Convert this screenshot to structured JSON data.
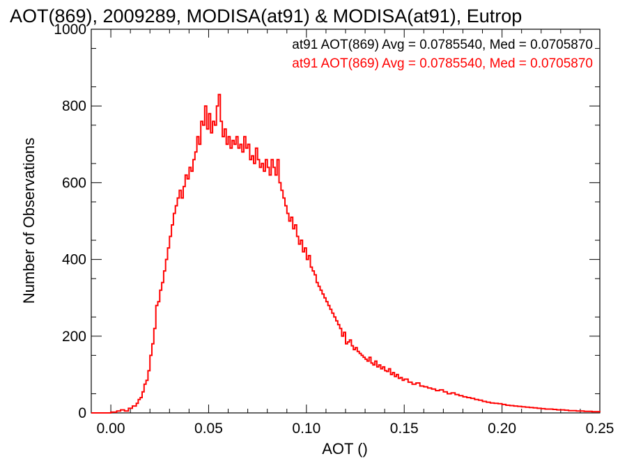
{
  "chart_data": {
    "type": "histogram-step",
    "title": "AOT(869), 2009289, MODISA(at91) & MODISA(at91), Eutrop",
    "xlabel": "AOT ()",
    "ylabel": "Number of Observations",
    "xlim": [
      -0.01,
      0.25
    ],
    "ylim": [
      0,
      1000
    ],
    "x_ticks": [
      0.0,
      0.05,
      0.1,
      0.15,
      0.2,
      0.25
    ],
    "x_tick_labels": [
      "0.00",
      "0.05",
      "0.10",
      "0.15",
      "0.20",
      "0.25"
    ],
    "y_ticks": [
      0,
      200,
      400,
      600,
      800,
      1000
    ],
    "y_tick_labels": [
      "0",
      "200",
      "400",
      "600",
      "800",
      "1000"
    ],
    "annotations": [
      {
        "text": "at91 AOT(869) Avg = 0.0785540, Med = 0.0705870",
        "color": "#000000"
      },
      {
        "text": "at91 AOT(869) Avg = 0.0785540, Med = 0.0705870",
        "color": "#ff0000"
      }
    ],
    "series": [
      {
        "color": "#ff0000",
        "points": [
          [
            -0.01,
            0
          ],
          [
            -0.005,
            0
          ],
          [
            0.0,
            2
          ],
          [
            0.003,
            5
          ],
          [
            0.005,
            8
          ],
          [
            0.007,
            5
          ],
          [
            0.009,
            12
          ],
          [
            0.011,
            18
          ],
          [
            0.013,
            25
          ],
          [
            0.014,
            35
          ],
          [
            0.015,
            40
          ],
          [
            0.016,
            55
          ],
          [
            0.017,
            75
          ],
          [
            0.018,
            85
          ],
          [
            0.019,
            110
          ],
          [
            0.02,
            150
          ],
          [
            0.021,
            180
          ],
          [
            0.022,
            220
          ],
          [
            0.023,
            280
          ],
          [
            0.024,
            290
          ],
          [
            0.025,
            320
          ],
          [
            0.026,
            340
          ],
          [
            0.027,
            370
          ],
          [
            0.028,
            400
          ],
          [
            0.029,
            430
          ],
          [
            0.03,
            460
          ],
          [
            0.031,
            490
          ],
          [
            0.032,
            520
          ],
          [
            0.033,
            540
          ],
          [
            0.034,
            560
          ],
          [
            0.035,
            580
          ],
          [
            0.036,
            560
          ],
          [
            0.037,
            590
          ],
          [
            0.038,
            620
          ],
          [
            0.039,
            610
          ],
          [
            0.04,
            640
          ],
          [
            0.041,
            630
          ],
          [
            0.042,
            660
          ],
          [
            0.043,
            680
          ],
          [
            0.044,
            720
          ],
          [
            0.045,
            700
          ],
          [
            0.046,
            760
          ],
          [
            0.047,
            750
          ],
          [
            0.048,
            800
          ],
          [
            0.049,
            740
          ],
          [
            0.05,
            780
          ],
          [
            0.051,
            730
          ],
          [
            0.052,
            760
          ],
          [
            0.053,
            750
          ],
          [
            0.054,
            800
          ],
          [
            0.055,
            830
          ],
          [
            0.056,
            760
          ],
          [
            0.057,
            720
          ],
          [
            0.058,
            740
          ],
          [
            0.059,
            700
          ],
          [
            0.06,
            720
          ],
          [
            0.061,
            690
          ],
          [
            0.062,
            710
          ],
          [
            0.063,
            700
          ],
          [
            0.064,
            720
          ],
          [
            0.065,
            690
          ],
          [
            0.066,
            700
          ],
          [
            0.067,
            680
          ],
          [
            0.068,
            720
          ],
          [
            0.069,
            690
          ],
          [
            0.07,
            700
          ],
          [
            0.071,
            660
          ],
          [
            0.072,
            670
          ],
          [
            0.073,
            650
          ],
          [
            0.074,
            690
          ],
          [
            0.075,
            660
          ],
          [
            0.076,
            640
          ],
          [
            0.077,
            650
          ],
          [
            0.078,
            630
          ],
          [
            0.079,
            660
          ],
          [
            0.08,
            640
          ],
          [
            0.081,
            620
          ],
          [
            0.082,
            660
          ],
          [
            0.083,
            640
          ],
          [
            0.084,
            620
          ],
          [
            0.085,
            660
          ],
          [
            0.086,
            600
          ],
          [
            0.087,
            580
          ],
          [
            0.088,
            560
          ],
          [
            0.089,
            540
          ],
          [
            0.09,
            520
          ],
          [
            0.091,
            500
          ],
          [
            0.092,
            510
          ],
          [
            0.093,
            480
          ],
          [
            0.094,
            490
          ],
          [
            0.095,
            460
          ],
          [
            0.096,
            440
          ],
          [
            0.097,
            450
          ],
          [
            0.098,
            420
          ],
          [
            0.099,
            430
          ],
          [
            0.1,
            400
          ],
          [
            0.101,
            410
          ],
          [
            0.102,
            380
          ],
          [
            0.103,
            370
          ],
          [
            0.104,
            360
          ],
          [
            0.105,
            340
          ],
          [
            0.106,
            330
          ],
          [
            0.107,
            320
          ],
          [
            0.108,
            310
          ],
          [
            0.109,
            300
          ],
          [
            0.11,
            290
          ],
          [
            0.111,
            280
          ],
          [
            0.112,
            270
          ],
          [
            0.113,
            260
          ],
          [
            0.114,
            250
          ],
          [
            0.115,
            240
          ],
          [
            0.116,
            230
          ],
          [
            0.117,
            220
          ],
          [
            0.118,
            200
          ],
          [
            0.119,
            210
          ],
          [
            0.12,
            180
          ],
          [
            0.121,
            185
          ],
          [
            0.122,
            190
          ],
          [
            0.123,
            175
          ],
          [
            0.124,
            165
          ],
          [
            0.125,
            170
          ],
          [
            0.126,
            160
          ],
          [
            0.127,
            155
          ],
          [
            0.128,
            150
          ],
          [
            0.129,
            145
          ],
          [
            0.13,
            140
          ],
          [
            0.131,
            135
          ],
          [
            0.132,
            145
          ],
          [
            0.133,
            130
          ],
          [
            0.134,
            125
          ],
          [
            0.135,
            135
          ],
          [
            0.136,
            120
          ],
          [
            0.137,
            125
          ],
          [
            0.138,
            115
          ],
          [
            0.139,
            120
          ],
          [
            0.14,
            110
          ],
          [
            0.141,
            108
          ],
          [
            0.142,
            115
          ],
          [
            0.143,
            100
          ],
          [
            0.144,
            105
          ],
          [
            0.145,
            95
          ],
          [
            0.146,
            100
          ],
          [
            0.147,
            90
          ],
          [
            0.148,
            92
          ],
          [
            0.149,
            85
          ],
          [
            0.15,
            88
          ],
          [
            0.152,
            80
          ],
          [
            0.154,
            75
          ],
          [
            0.156,
            78
          ],
          [
            0.158,
            70
          ],
          [
            0.16,
            68
          ],
          [
            0.162,
            65
          ],
          [
            0.164,
            62
          ],
          [
            0.166,
            58
          ],
          [
            0.168,
            60
          ],
          [
            0.17,
            55
          ],
          [
            0.172,
            50
          ],
          [
            0.174,
            52
          ],
          [
            0.176,
            48
          ],
          [
            0.178,
            45
          ],
          [
            0.18,
            42
          ],
          [
            0.182,
            40
          ],
          [
            0.184,
            38
          ],
          [
            0.186,
            35
          ],
          [
            0.188,
            33
          ],
          [
            0.19,
            30
          ],
          [
            0.192,
            28
          ],
          [
            0.194,
            26
          ],
          [
            0.196,
            25
          ],
          [
            0.198,
            24
          ],
          [
            0.2,
            22
          ],
          [
            0.202,
            20
          ],
          [
            0.204,
            19
          ],
          [
            0.206,
            18
          ],
          [
            0.208,
            17
          ],
          [
            0.21,
            16
          ],
          [
            0.212,
            15
          ],
          [
            0.214,
            14
          ],
          [
            0.216,
            13
          ],
          [
            0.218,
            12
          ],
          [
            0.22,
            11
          ],
          [
            0.222,
            10
          ],
          [
            0.224,
            10
          ],
          [
            0.226,
            9
          ],
          [
            0.228,
            8
          ],
          [
            0.23,
            8
          ],
          [
            0.232,
            7
          ],
          [
            0.234,
            6
          ],
          [
            0.236,
            6
          ],
          [
            0.238,
            5
          ],
          [
            0.24,
            5
          ],
          [
            0.242,
            4
          ],
          [
            0.244,
            4
          ],
          [
            0.246,
            3
          ],
          [
            0.248,
            3
          ],
          [
            0.25,
            2
          ]
        ]
      }
    ]
  }
}
